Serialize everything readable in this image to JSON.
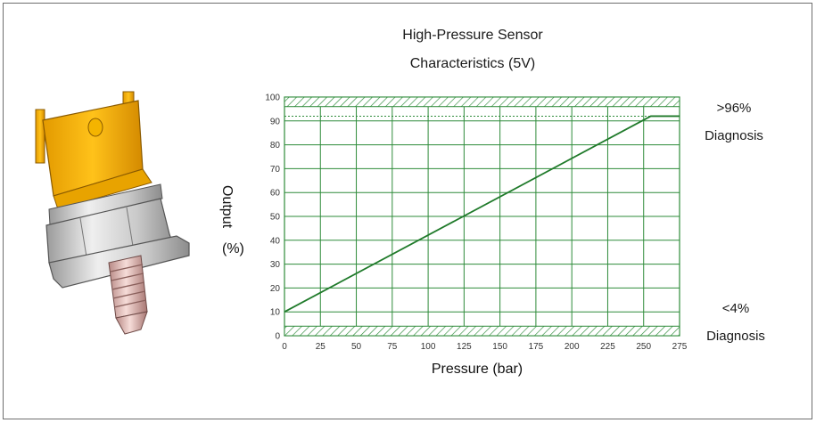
{
  "chart_data": {
    "type": "line",
    "title_line1": "High-Pressure Sensor",
    "title_line2": "Characteristics (5V)",
    "xlabel": "Pressure (bar)",
    "ylabel": "Output",
    "ylabel_unit": "(%)",
    "xlim": [
      0,
      275
    ],
    "ylim": [
      0,
      100
    ],
    "x_ticks": [
      "0",
      "25",
      "50",
      "75",
      "100",
      "125",
      "150",
      "175",
      "200",
      "225",
      "250",
      "275"
    ],
    "y_ticks": [
      "0",
      "10",
      "20",
      "30",
      "40",
      "50",
      "60",
      "70",
      "80",
      "90",
      "100"
    ],
    "grid": true,
    "series": [
      {
        "x": [
          0,
          255,
          275
        ],
        "y": [
          10,
          92,
          92
        ]
      }
    ],
    "diagnosis_upper": {
      "label_value": ">96%",
      "label_text": "Diagnosis",
      "band": [
        96,
        100
      ]
    },
    "diagnosis_lower": {
      "label_value": "<4%",
      "label_text": "Diagnosis",
      "band": [
        0,
        4
      ]
    },
    "line_color": "#1f7a2a",
    "grid_color": "#2e8b3a"
  },
  "image": {
    "description_icon": "pressure-sensor-image"
  }
}
